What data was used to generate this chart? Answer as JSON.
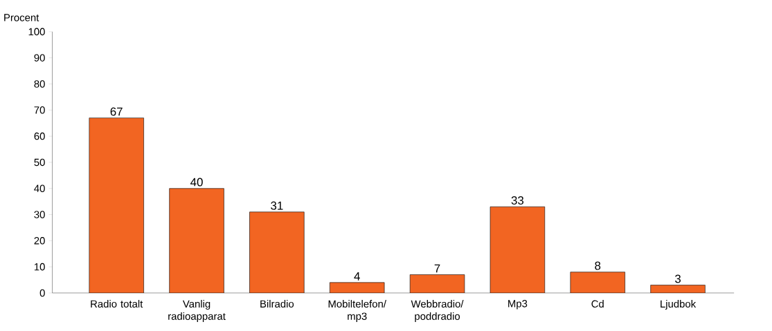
{
  "chart_data": {
    "type": "bar",
    "ylabel": "Procent",
    "categories": [
      "Radio totalt",
      "Vanlig radioapparat",
      "Bilradio",
      "Mobiltelefon/ mp3",
      "Webbradio/ poddradio",
      "Mp3",
      "Cd",
      "Ljudbok"
    ],
    "values": [
      67,
      40,
      31,
      4,
      7,
      33,
      8,
      3
    ],
    "color": "#f26522",
    "ylim": [
      0,
      100
    ],
    "yticks": [
      0,
      10,
      20,
      30,
      40,
      50,
      60,
      70,
      80,
      90,
      100
    ],
    "data_labels": true
  }
}
